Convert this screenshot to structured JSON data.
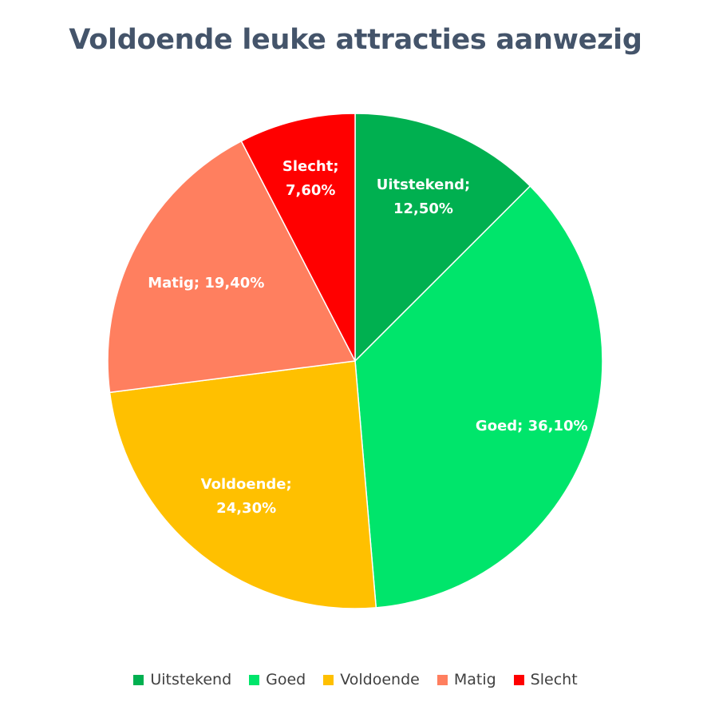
{
  "chart_data": {
    "type": "pie",
    "title": "Voldoende leuke attracties aanwezig",
    "categories": [
      "Uitstekend",
      "Goed",
      "Voldoende",
      "Matig",
      "Slecht"
    ],
    "values": [
      12.5,
      36.1,
      24.3,
      19.4,
      7.6
    ],
    "data_labels": [
      [
        "Uitstekend;",
        "12,50%"
      ],
      [
        "Goed; 36,10%"
      ],
      [
        "Voldoende;",
        "24,30%"
      ],
      [
        "Matig; 19,40%"
      ],
      [
        "Slecht;",
        "7,60%"
      ]
    ],
    "colors": [
      "#00B050",
      "#00E56B",
      "#FFC000",
      "#FF7F5F",
      "#FF0000"
    ],
    "legend": {
      "position": "bottom",
      "entries": [
        "Uitstekend",
        "Goed",
        "Voldoende",
        "Matig",
        "Slecht"
      ]
    }
  }
}
